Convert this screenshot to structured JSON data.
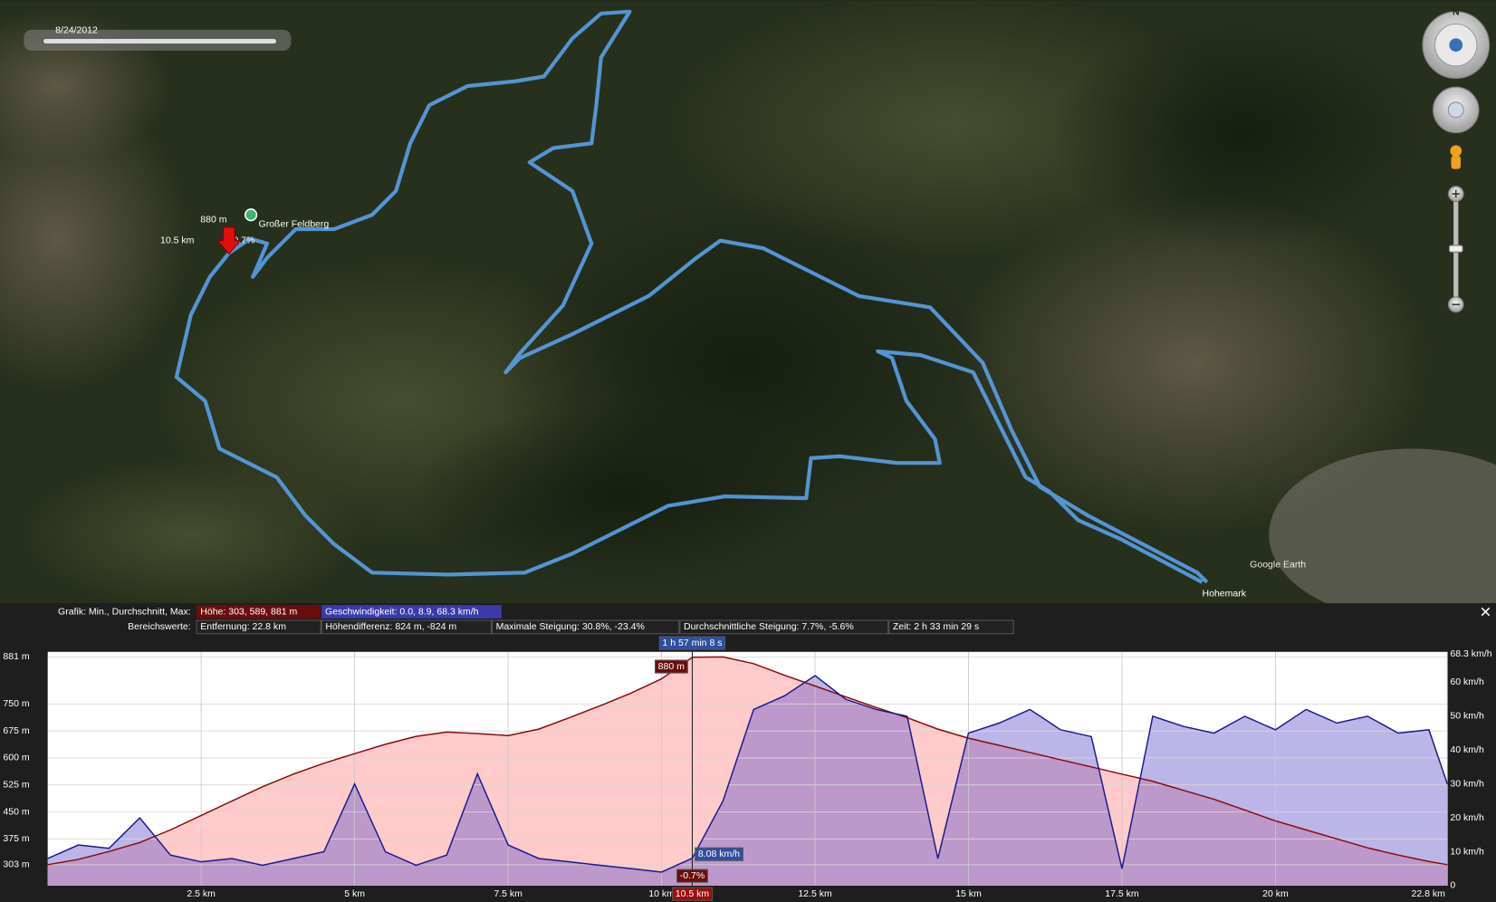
{
  "timeline": {
    "date": "8/24/2012"
  },
  "compass": {
    "north": "N"
  },
  "map": {
    "summit": "Großer Feldberg",
    "end": "Hohemark",
    "logo": "Google Earth"
  },
  "stats": {
    "graph_label": "Grafik: Min., Durchschnitt, Max:",
    "graph": [
      "Höhe: 303, 589, 881 m",
      "Geschwindigkeit: 0.0, 8.9, 68.3 km/h"
    ],
    "range_label": "Bereichswerte:",
    "range": [
      "Entfernung: 22.8 km",
      "Höhendifferenz: 824 m, -824 m",
      "Maximale Steigung: 30.8%, -23.4%",
      "Durchschnittliche Steigung: 7.7%, -5.6%",
      "Zeit: 2 h 33 min 29 s"
    ]
  },
  "cursor": {
    "x": {
      "value": 10.5,
      "label": "10.5 km"
    },
    "time": "1 h 57 min 8 s",
    "elevation": {
      "value": 880,
      "label": "880 m"
    },
    "speed": {
      "value": 8.08,
      "label": "8.08 km/h"
    },
    "grade": "-0.7%"
  },
  "chart_data": {
    "type": "line",
    "x": [
      0,
      0.5,
      1,
      1.5,
      2,
      2.5,
      3,
      3.5,
      4,
      4.5,
      5,
      5.5,
      6,
      6.5,
      7,
      7.5,
      8,
      8.5,
      9,
      9.5,
      10,
      10.5,
      11,
      11.5,
      12,
      12.5,
      13,
      13.5,
      14,
      14.5,
      15,
      15.5,
      16,
      16.5,
      17,
      17.5,
      18,
      18.5,
      19,
      19.5,
      20,
      20.5,
      21,
      21.5,
      22,
      22.5,
      22.8
    ],
    "series": [
      {
        "color": "#8b0a0a",
        "fill": "#ffc4c4",
        "values": [
          303,
          318,
          340,
          365,
          400,
          440,
          480,
          520,
          555,
          585,
          612,
          638,
          660,
          672,
          668,
          662,
          680,
          712,
          745,
          780,
          820,
          880,
          881,
          862,
          830,
          800,
          770,
          740,
          712,
          680,
          655,
          635,
          615,
          595,
          575,
          555,
          535,
          510,
          485,
          455,
          425,
          400,
          375,
          350,
          330,
          312,
          303
        ]
      },
      {
        "color": "#1a1a8c",
        "fill": "#6a5acd",
        "axis": "y2",
        "values": [
          8,
          12,
          11,
          20,
          9,
          7,
          8,
          6,
          8,
          10,
          30,
          10,
          6,
          9,
          33,
          12,
          8,
          7,
          6,
          5,
          4,
          8.08,
          25,
          52,
          56,
          62,
          55,
          52,
          50,
          8,
          45,
          48,
          52,
          46,
          44,
          5,
          50,
          47,
          45,
          50,
          46,
          52,
          48,
          50,
          45,
          46,
          30
        ]
      }
    ],
    "xlim": [
      0,
      22.8
    ],
    "xticks": [
      {
        "value": 2.5,
        "label": "2.5 km"
      },
      {
        "value": 5,
        "label": "5 km"
      },
      {
        "value": 7.5,
        "label": "7.5 km"
      },
      {
        "value": 10,
        "label": "10 km"
      },
      {
        "value": 12.5,
        "label": "12.5 km"
      },
      {
        "value": 15,
        "label": "15 km"
      },
      {
        "value": 17.5,
        "label": "17.5 km"
      },
      {
        "value": 20,
        "label": "20 km"
      },
      {
        "value": 22.8,
        "label": "22.8 km"
      }
    ],
    "ylim": [
      245,
      895
    ],
    "yticks": [
      {
        "value": 303,
        "label": "303 m"
      },
      {
        "value": 375,
        "label": "375 m"
      },
      {
        "value": 450,
        "label": "450 m"
      },
      {
        "value": 525,
        "label": "525 m"
      },
      {
        "value": 600,
        "label": "600 m"
      },
      {
        "value": 675,
        "label": "675 m"
      },
      {
        "value": 750,
        "label": "750 m"
      },
      {
        "value": 881,
        "label": "881 m"
      }
    ],
    "y2lim": [
      0,
      69
    ],
    "y2ticks": [
      0,
      {
        "value": 10,
        "label": "10 km/h"
      },
      {
        "value": 20,
        "label": "20 km/h"
      },
      {
        "value": 30,
        "label": "30 km/h"
      },
      {
        "value": 40,
        "label": "40 km/h"
      },
      {
        "value": 50,
        "label": "50 km/h"
      },
      {
        "value": 60,
        "label": "60 km/h"
      },
      {
        "value": 68.3,
        "label": "68.3 km/h"
      }
    ],
    "grid": true
  }
}
